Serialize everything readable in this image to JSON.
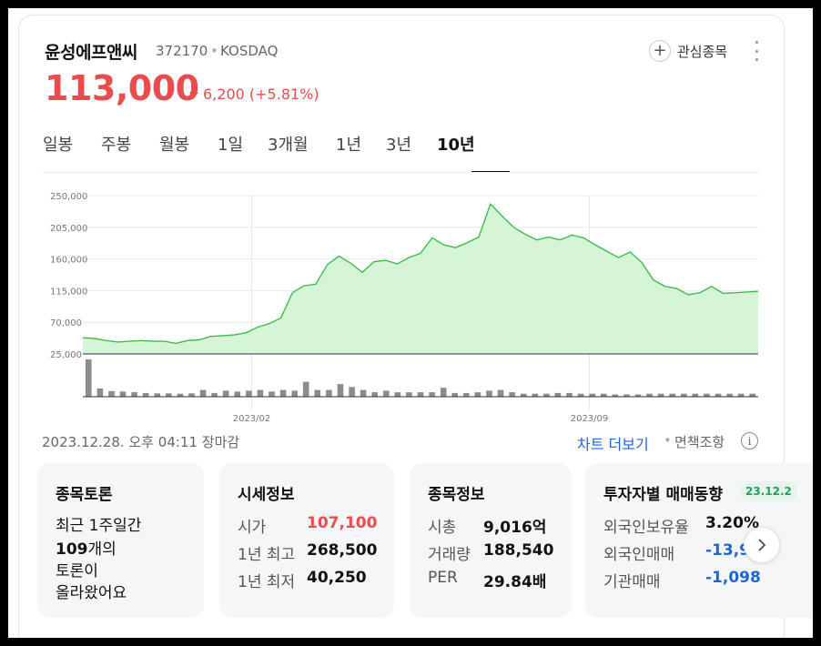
{
  "header": {
    "name": "윤성에프앤씨",
    "code": "372170",
    "market": "KOSDAQ",
    "separator": "•",
    "watch_label": "관심종목",
    "watch_icon": "plus-circle-icon",
    "more_icon": "kebab-icon"
  },
  "price": {
    "current": "113,000",
    "change": "6,200",
    "change_pct": "(+5.81%)",
    "direction": "up",
    "color": "#e94c4c"
  },
  "tabs": [
    {
      "label": "일봉"
    },
    {
      "label": "주봉"
    },
    {
      "label": "월봉"
    },
    {
      "label": "1일"
    },
    {
      "label": "3개월"
    },
    {
      "label": "1년"
    },
    {
      "label": "3년"
    },
    {
      "label": "10년",
      "active": true
    }
  ],
  "chart_data": {
    "type": "area",
    "y_ticks": [
      "250,000",
      "205,000",
      "160,000",
      "115,000",
      "70,000",
      "25,000"
    ],
    "ylim": [
      25000,
      250000
    ],
    "x_ticks": [
      "2023/02",
      "2023/09"
    ],
    "line_color": "#3bbf4a",
    "fill_color": "#d6f5d6",
    "values": [
      48000,
      47000,
      44000,
      42000,
      43000,
      44000,
      43000,
      43000,
      40000,
      44000,
      45000,
      50000,
      51000,
      52000,
      55000,
      63000,
      68000,
      76000,
      112000,
      122000,
      124000,
      152000,
      164000,
      154000,
      141000,
      156000,
      158000,
      153000,
      162000,
      168000,
      190000,
      180000,
      176000,
      183000,
      191000,
      238000,
      221000,
      205000,
      195000,
      187000,
      191000,
      187000,
      194000,
      190000,
      180000,
      171000,
      162000,
      170000,
      155000,
      130000,
      121000,
      118000,
      109000,
      112000,
      121000,
      111000,
      112000,
      113000,
      114000
    ],
    "volume_values": [
      100,
      22,
      15,
      14,
      12,
      10,
      9,
      9,
      8,
      9,
      18,
      10,
      16,
      14,
      16,
      18,
      14,
      18,
      16,
      40,
      18,
      18,
      34,
      26,
      18,
      12,
      16,
      12,
      12,
      12,
      12,
      24,
      10,
      10,
      12,
      16,
      18,
      12,
      8,
      8,
      8,
      10,
      10,
      8,
      8,
      8,
      6,
      6,
      6,
      8,
      8,
      8,
      8,
      8,
      8,
      8,
      8,
      8,
      8
    ],
    "volume_color": "#8c8c8c"
  },
  "chart_footer": {
    "timestamp": "2023.12.28. 오후 04:11 장마감",
    "more_label": "차트 더보기",
    "separator": "•",
    "disclaimer": "면책조항",
    "info_icon": "i"
  },
  "panels": {
    "forum": {
      "title": "종목토론",
      "lines": [
        "최근 1주일간",
        "109",
        "개의",
        "토론이",
        "올라왔어요"
      ]
    },
    "quote": {
      "title": "시세정보",
      "rows": [
        {
          "label": "시가",
          "value": "107,100"
        },
        {
          "label": "1년 최고",
          "value": "268,500"
        },
        {
          "label": "1년 최저",
          "value": "40,250"
        }
      ]
    },
    "info": {
      "title": "종목정보",
      "rows": [
        {
          "label": "시총",
          "value": "9,016억"
        },
        {
          "label": "거래량",
          "value": "188,540"
        },
        {
          "label": "PER",
          "value": "29.84배"
        }
      ]
    },
    "investor": {
      "title": "투자자별 매매동향",
      "badge": "23.12.2",
      "rows": [
        {
          "label": "외국인보유율",
          "value": "3.20%"
        },
        {
          "label": "외국인매매",
          "value": "-13,9"
        },
        {
          "label": "기관매매",
          "value": "-1,098"
        }
      ]
    },
    "next_icon": "chevron-right-icon"
  }
}
